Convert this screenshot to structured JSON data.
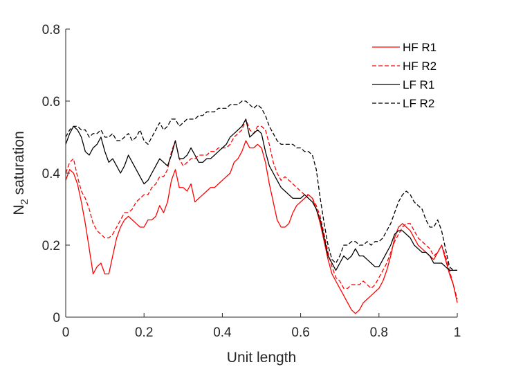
{
  "chart_data": {
    "type": "line",
    "title": "",
    "xlabel": "Unit length",
    "ylabel": {
      "main": "N",
      "subscript": "2",
      "rest": " saturation"
    },
    "xlim": [
      0,
      1
    ],
    "ylim": [
      0,
      0.8
    ],
    "xticks": [
      0,
      0.2,
      0.4,
      0.6,
      0.8,
      1
    ],
    "xtick_labels": [
      "0",
      "0.2",
      "0.4",
      "0.6",
      "0.8",
      "1"
    ],
    "yticks": [
      0,
      0.2,
      0.4,
      0.6,
      0.8
    ],
    "ytick_labels": [
      "0",
      "0.2",
      "0.4",
      "0.6",
      "0.8"
    ],
    "grid": false,
    "legend_position": "top-right",
    "series": [
      {
        "name": "HF R1",
        "color": "#ff0000",
        "style": "solid",
        "x": [
          0,
          0.01,
          0.02,
          0.03,
          0.04,
          0.05,
          0.06,
          0.07,
          0.08,
          0.09,
          0.1,
          0.11,
          0.12,
          0.13,
          0.14,
          0.15,
          0.16,
          0.17,
          0.18,
          0.19,
          0.2,
          0.21,
          0.22,
          0.23,
          0.24,
          0.25,
          0.26,
          0.27,
          0.28,
          0.29,
          0.3,
          0.31,
          0.32,
          0.33,
          0.34,
          0.35,
          0.36,
          0.37,
          0.38,
          0.39,
          0.4,
          0.41,
          0.42,
          0.43,
          0.44,
          0.45,
          0.46,
          0.47,
          0.48,
          0.49,
          0.5,
          0.51,
          0.52,
          0.53,
          0.54,
          0.55,
          0.56,
          0.57,
          0.58,
          0.59,
          0.6,
          0.61,
          0.62,
          0.63,
          0.64,
          0.65,
          0.66,
          0.67,
          0.68,
          0.69,
          0.7,
          0.71,
          0.72,
          0.73,
          0.74,
          0.75,
          0.76,
          0.77,
          0.78,
          0.79,
          0.8,
          0.81,
          0.82,
          0.83,
          0.84,
          0.85,
          0.86,
          0.87,
          0.88,
          0.89,
          0.9,
          0.91,
          0.92,
          0.93,
          0.94,
          0.95,
          0.96,
          0.97,
          0.98,
          0.99,
          1.0
        ],
        "y": [
          0.38,
          0.41,
          0.4,
          0.37,
          0.32,
          0.26,
          0.19,
          0.12,
          0.14,
          0.15,
          0.12,
          0.12,
          0.17,
          0.22,
          0.25,
          0.27,
          0.28,
          0.27,
          0.26,
          0.25,
          0.25,
          0.27,
          0.27,
          0.28,
          0.31,
          0.29,
          0.32,
          0.38,
          0.41,
          0.36,
          0.36,
          0.35,
          0.37,
          0.32,
          0.33,
          0.34,
          0.35,
          0.36,
          0.36,
          0.37,
          0.38,
          0.39,
          0.4,
          0.43,
          0.44,
          0.46,
          0.49,
          0.47,
          0.47,
          0.48,
          0.47,
          0.43,
          0.37,
          0.32,
          0.27,
          0.25,
          0.25,
          0.26,
          0.29,
          0.31,
          0.32,
          0.33,
          0.34,
          0.33,
          0.3,
          0.26,
          0.21,
          0.16,
          0.12,
          0.1,
          0.08,
          0.06,
          0.04,
          0.02,
          0.01,
          0.02,
          0.04,
          0.05,
          0.06,
          0.07,
          0.08,
          0.1,
          0.13,
          0.17,
          0.22,
          0.25,
          0.26,
          0.25,
          0.24,
          0.22,
          0.2,
          0.19,
          0.18,
          0.17,
          0.16,
          0.18,
          0.2,
          0.16,
          0.12,
          0.09,
          0.04
        ]
      },
      {
        "name": "HF R2",
        "color": "#ff0000",
        "style": "dashed",
        "x": [
          0,
          0.01,
          0.02,
          0.03,
          0.04,
          0.05,
          0.06,
          0.07,
          0.08,
          0.09,
          0.1,
          0.11,
          0.12,
          0.13,
          0.14,
          0.15,
          0.16,
          0.17,
          0.18,
          0.19,
          0.2,
          0.21,
          0.22,
          0.23,
          0.24,
          0.25,
          0.26,
          0.27,
          0.28,
          0.29,
          0.3,
          0.31,
          0.32,
          0.33,
          0.34,
          0.35,
          0.36,
          0.37,
          0.38,
          0.39,
          0.4,
          0.41,
          0.42,
          0.43,
          0.44,
          0.45,
          0.46,
          0.47,
          0.48,
          0.49,
          0.5,
          0.51,
          0.52,
          0.53,
          0.54,
          0.55,
          0.56,
          0.57,
          0.58,
          0.59,
          0.6,
          0.61,
          0.62,
          0.63,
          0.64,
          0.65,
          0.66,
          0.67,
          0.68,
          0.69,
          0.7,
          0.71,
          0.72,
          0.73,
          0.74,
          0.75,
          0.76,
          0.77,
          0.78,
          0.79,
          0.8,
          0.81,
          0.82,
          0.83,
          0.84,
          0.85,
          0.86,
          0.87,
          0.88,
          0.89,
          0.9,
          0.91,
          0.92,
          0.93,
          0.94,
          0.95,
          0.96,
          0.97,
          0.98,
          0.99,
          1.0
        ],
        "y": [
          0.4,
          0.43,
          0.44,
          0.39,
          0.35,
          0.33,
          0.3,
          0.26,
          0.24,
          0.23,
          0.22,
          0.22,
          0.23,
          0.25,
          0.27,
          0.29,
          0.29,
          0.3,
          0.32,
          0.33,
          0.34,
          0.34,
          0.36,
          0.37,
          0.39,
          0.39,
          0.41,
          0.46,
          0.49,
          0.44,
          0.42,
          0.43,
          0.44,
          0.44,
          0.45,
          0.45,
          0.45,
          0.46,
          0.46,
          0.47,
          0.47,
          0.47,
          0.48,
          0.5,
          0.51,
          0.52,
          0.55,
          0.52,
          0.51,
          0.53,
          0.53,
          0.52,
          0.48,
          0.43,
          0.4,
          0.38,
          0.39,
          0.38,
          0.37,
          0.36,
          0.35,
          0.34,
          0.34,
          0.33,
          0.31,
          0.28,
          0.23,
          0.18,
          0.14,
          0.11,
          0.1,
          0.08,
          0.08,
          0.09,
          0.09,
          0.09,
          0.1,
          0.09,
          0.08,
          0.09,
          0.11,
          0.13,
          0.15,
          0.18,
          0.21,
          0.23,
          0.25,
          0.26,
          0.26,
          0.24,
          0.22,
          0.21,
          0.2,
          0.19,
          0.17,
          0.18,
          0.2,
          0.17,
          0.13,
          0.09,
          0.05
        ]
      },
      {
        "name": "LF R1",
        "color": "#000000",
        "style": "solid",
        "x": [
          0,
          0.01,
          0.02,
          0.03,
          0.04,
          0.05,
          0.06,
          0.07,
          0.08,
          0.09,
          0.1,
          0.11,
          0.12,
          0.13,
          0.14,
          0.15,
          0.16,
          0.17,
          0.18,
          0.19,
          0.2,
          0.21,
          0.22,
          0.23,
          0.24,
          0.25,
          0.26,
          0.27,
          0.28,
          0.29,
          0.3,
          0.31,
          0.32,
          0.33,
          0.34,
          0.35,
          0.36,
          0.37,
          0.38,
          0.39,
          0.4,
          0.41,
          0.42,
          0.43,
          0.44,
          0.45,
          0.46,
          0.47,
          0.48,
          0.49,
          0.5,
          0.51,
          0.52,
          0.53,
          0.54,
          0.55,
          0.56,
          0.57,
          0.58,
          0.59,
          0.6,
          0.61,
          0.62,
          0.63,
          0.64,
          0.65,
          0.66,
          0.67,
          0.68,
          0.69,
          0.7,
          0.71,
          0.72,
          0.73,
          0.74,
          0.75,
          0.76,
          0.77,
          0.78,
          0.79,
          0.8,
          0.81,
          0.82,
          0.83,
          0.84,
          0.85,
          0.86,
          0.87,
          0.88,
          0.89,
          0.9,
          0.91,
          0.92,
          0.93,
          0.94,
          0.95,
          0.96,
          0.97,
          0.98,
          0.99,
          1.0
        ],
        "y": [
          0.48,
          0.51,
          0.53,
          0.52,
          0.5,
          0.46,
          0.45,
          0.47,
          0.48,
          0.5,
          0.46,
          0.43,
          0.44,
          0.42,
          0.4,
          0.42,
          0.45,
          0.43,
          0.41,
          0.39,
          0.37,
          0.38,
          0.4,
          0.42,
          0.44,
          0.43,
          0.42,
          0.45,
          0.49,
          0.44,
          0.44,
          0.45,
          0.47,
          0.45,
          0.43,
          0.43,
          0.44,
          0.44,
          0.45,
          0.46,
          0.47,
          0.48,
          0.5,
          0.51,
          0.52,
          0.53,
          0.55,
          0.5,
          0.51,
          0.52,
          0.51,
          0.46,
          0.42,
          0.4,
          0.38,
          0.36,
          0.35,
          0.34,
          0.33,
          0.33,
          0.33,
          0.34,
          0.33,
          0.32,
          0.3,
          0.27,
          0.22,
          0.17,
          0.15,
          0.13,
          0.15,
          0.17,
          0.16,
          0.17,
          0.19,
          0.17,
          0.17,
          0.16,
          0.15,
          0.14,
          0.14,
          0.16,
          0.18,
          0.2,
          0.23,
          0.24,
          0.24,
          0.23,
          0.22,
          0.2,
          0.19,
          0.18,
          0.18,
          0.17,
          0.15,
          0.15,
          0.15,
          0.14,
          0.13,
          0.13,
          0.13
        ]
      },
      {
        "name": "LF R2",
        "color": "#000000",
        "style": "dashed",
        "x": [
          0,
          0.01,
          0.02,
          0.03,
          0.04,
          0.05,
          0.06,
          0.07,
          0.08,
          0.09,
          0.1,
          0.11,
          0.12,
          0.13,
          0.14,
          0.15,
          0.16,
          0.17,
          0.18,
          0.19,
          0.2,
          0.21,
          0.22,
          0.23,
          0.24,
          0.25,
          0.26,
          0.27,
          0.28,
          0.29,
          0.3,
          0.31,
          0.32,
          0.33,
          0.34,
          0.35,
          0.36,
          0.37,
          0.38,
          0.39,
          0.4,
          0.41,
          0.42,
          0.43,
          0.44,
          0.45,
          0.46,
          0.47,
          0.48,
          0.49,
          0.5,
          0.51,
          0.52,
          0.53,
          0.54,
          0.55,
          0.56,
          0.57,
          0.58,
          0.59,
          0.6,
          0.61,
          0.62,
          0.63,
          0.64,
          0.65,
          0.66,
          0.67,
          0.68,
          0.69,
          0.7,
          0.71,
          0.72,
          0.73,
          0.74,
          0.75,
          0.76,
          0.77,
          0.78,
          0.79,
          0.8,
          0.81,
          0.82,
          0.83,
          0.84,
          0.85,
          0.86,
          0.87,
          0.88,
          0.89,
          0.9,
          0.91,
          0.92,
          0.93,
          0.94,
          0.95,
          0.96,
          0.97,
          0.98,
          0.99,
          1.0
        ],
        "y": [
          0.5,
          0.52,
          0.53,
          0.53,
          0.52,
          0.52,
          0.5,
          0.51,
          0.51,
          0.52,
          0.5,
          0.5,
          0.51,
          0.49,
          0.49,
          0.5,
          0.51,
          0.49,
          0.5,
          0.52,
          0.49,
          0.48,
          0.5,
          0.52,
          0.54,
          0.52,
          0.53,
          0.55,
          0.55,
          0.53,
          0.54,
          0.55,
          0.55,
          0.55,
          0.56,
          0.56,
          0.57,
          0.57,
          0.57,
          0.58,
          0.58,
          0.58,
          0.59,
          0.59,
          0.59,
          0.6,
          0.6,
          0.59,
          0.58,
          0.59,
          0.58,
          0.56,
          0.53,
          0.51,
          0.49,
          0.48,
          0.48,
          0.48,
          0.48,
          0.47,
          0.47,
          0.46,
          0.46,
          0.45,
          0.41,
          0.33,
          0.26,
          0.2,
          0.16,
          0.15,
          0.17,
          0.2,
          0.2,
          0.21,
          0.21,
          0.2,
          0.2,
          0.21,
          0.2,
          0.21,
          0.21,
          0.22,
          0.24,
          0.26,
          0.29,
          0.32,
          0.34,
          0.35,
          0.34,
          0.32,
          0.31,
          0.3,
          0.27,
          0.25,
          0.25,
          0.27,
          0.24,
          0.19,
          0.14,
          0.13,
          0.13
        ]
      }
    ]
  }
}
